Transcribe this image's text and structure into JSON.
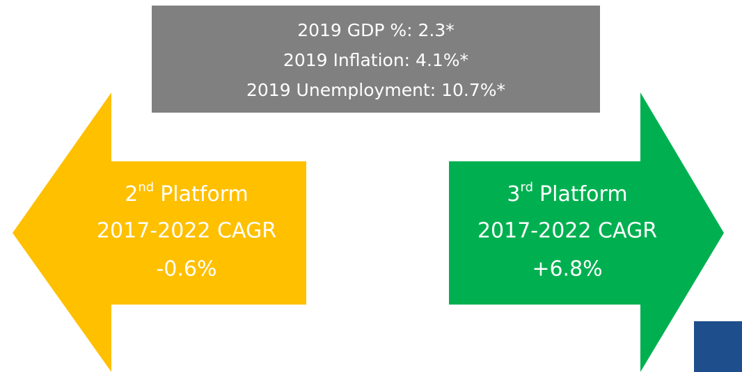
{
  "info_box": {
    "lines": [
      "2019 GDP %: 2.3*",
      "2019 Inflation: 4.1%*",
      "2019 Unemployment: 10.7%*"
    ]
  },
  "left_arrow": {
    "ordinal": "2",
    "suffix": "nd",
    "label": "Platform",
    "period": "2017-2022 CAGR",
    "value": "-0.6%"
  },
  "right_arrow": {
    "ordinal": "3",
    "suffix": "rd",
    "label": "Platform",
    "period": "2017-2022 CAGR",
    "value": "+6.8%"
  }
}
